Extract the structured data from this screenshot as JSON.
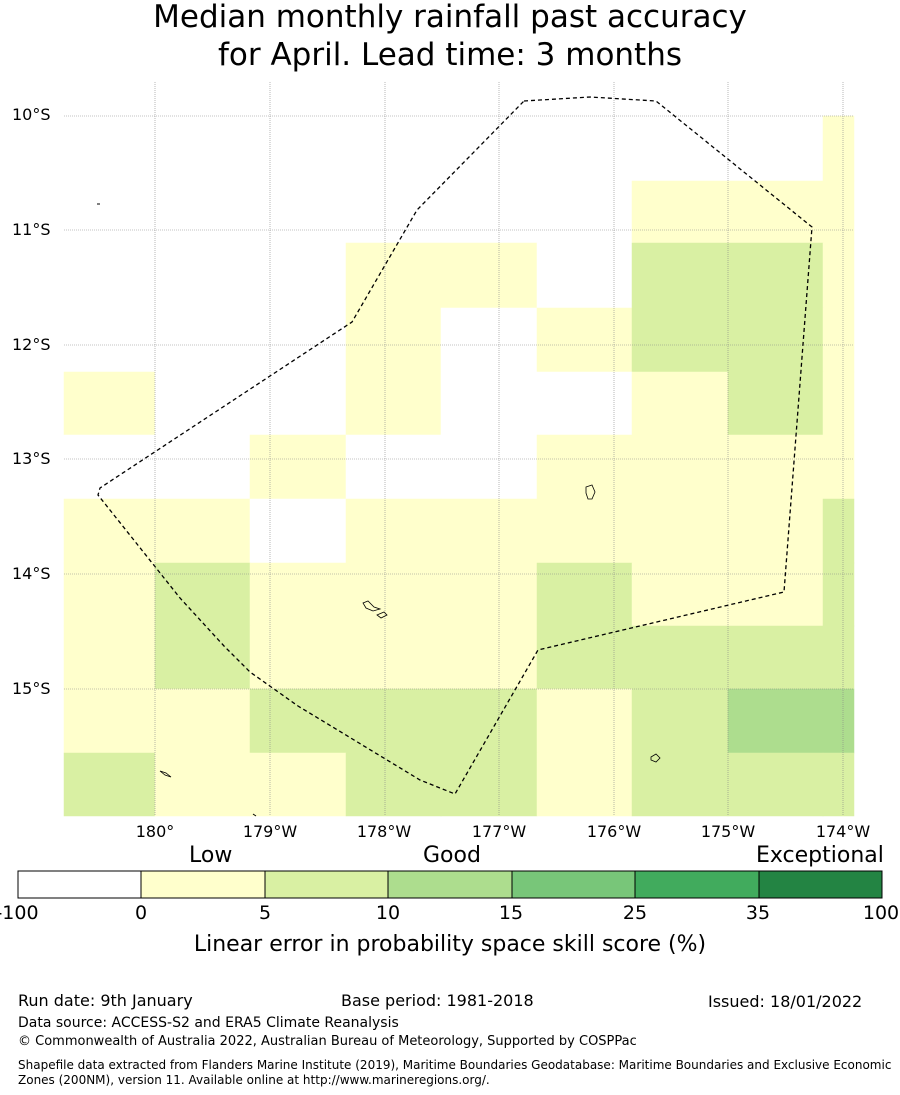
{
  "title": {
    "line1": "Median monthly rainfall past accuracy",
    "line2": "for April. Lead time: 3 months"
  },
  "map": {
    "lat_labels": [
      "10°S",
      "11°S",
      "12°S",
      "13°S",
      "14°S",
      "15°S"
    ],
    "lon_labels": [
      "180°",
      "179°W",
      "178°W",
      "177°W",
      "176°W",
      "175°W",
      "174°W"
    ],
    "cell_classes_legend": "0=white(<0), 1=0-5, 2=5-10, 3=10-15",
    "grid_rows_north_to_south": [
      [
        -1,
        -1,
        0,
        0,
        0,
        0,
        0,
        0,
        0
      ],
      [
        -1,
        -1,
        0,
        0,
        0,
        0,
        0,
        0,
        1
      ],
      [
        -1,
        -1,
        0,
        0,
        0,
        0,
        1,
        1,
        1
      ],
      [
        -1,
        -1,
        0,
        1,
        1,
        0,
        2,
        2,
        1
      ],
      [
        -1,
        -1,
        0,
        1,
        0,
        1,
        2,
        2,
        1
      ],
      [
        1,
        0,
        0,
        1,
        0,
        0,
        1,
        2,
        1
      ],
      [
        0,
        0,
        1,
        0,
        0,
        1,
        1,
        1,
        1
      ],
      [
        1,
        1,
        0,
        1,
        1,
        1,
        1,
        1,
        2
      ],
      [
        1,
        2,
        1,
        1,
        1,
        2,
        1,
        1,
        2
      ],
      [
        1,
        2,
        1,
        1,
        1,
        2,
        2,
        2,
        2
      ],
      [
        1,
        1,
        2,
        2,
        2,
        1,
        2,
        3,
        3
      ],
      [
        2,
        1,
        1,
        2,
        2,
        1,
        2,
        2,
        2
      ]
    ]
  },
  "colorbar": {
    "category_words": [
      "Low",
      "Good",
      "Exceptional"
    ],
    "tick_labels": [
      "-100",
      "0",
      "5",
      "10",
      "15",
      "25",
      "35",
      "100"
    ],
    "colors": [
      "#ffffff",
      "#ffffcc",
      "#d9f0a3",
      "#addd8e",
      "#78c679",
      "#41ab5d",
      "#238443"
    ],
    "title": "Linear error in probability space skill score (%)"
  },
  "footer": {
    "run_date": "Run date: 9th January",
    "base_period": "Base period: 1981-2018",
    "issued": "Issued: 18/01/2022",
    "data_source": "Data source: ACCESS-S2 and ERA5 Climate Reanalysis",
    "copyright": "© Commonwealth of Australia 2022, Australian Bureau of Meteorology, Supported by COSPPac",
    "shapefile_line1": "Shapefile data extracted from Flanders Marine Institute (2019), Maritime Boundaries Geodatabase: Maritime Boundaries and Exclusive Economic",
    "shapefile_line2": "Zones (200NM), version 11. Available online at http://www.marineregions.org/."
  }
}
